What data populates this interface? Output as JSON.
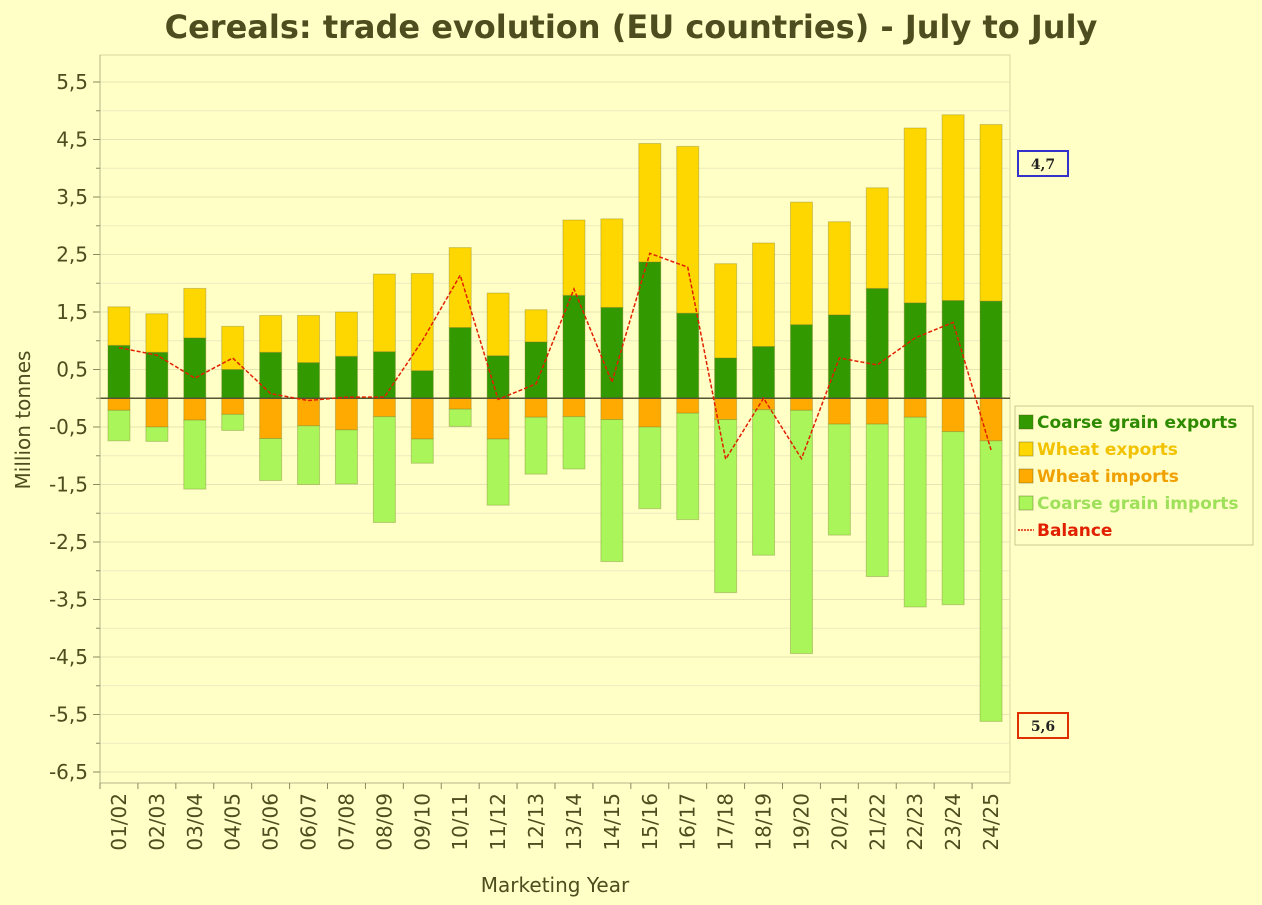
{
  "chart_data": {
    "type": "bar",
    "title": "Cereals: trade evolution (EU countries) - July to July",
    "xlabel": "Marketing Year",
    "ylabel": "Million tonnes",
    "ylim": [
      -6.5,
      5.5
    ],
    "yticks": [
      5.5,
      4.5,
      3.5,
      2.5,
      1.5,
      0.5,
      -0.5,
      -1.5,
      -2.5,
      -3.5,
      -4.5,
      -5.5,
      -6.5
    ],
    "ytick_labels": [
      "5,5",
      "4,5",
      "3,5",
      "2,5",
      "1,5",
      "0,5",
      "-0,5",
      "-1,5",
      "-2,5",
      "-3,5",
      "-4,5",
      "-5,5",
      "-6,5"
    ],
    "grid": true,
    "legend_position": "right",
    "categories": [
      "01/02",
      "02/03",
      "03/04",
      "04/05",
      "05/06",
      "06/07",
      "07/08",
      "08/09",
      "09/10",
      "10/11",
      "11/12",
      "12/13",
      "13/14",
      "14/15",
      "15/16",
      "16/17",
      "17/18",
      "18/19",
      "19/20",
      "20/21",
      "21/22",
      "22/23",
      "23/24",
      "24/25"
    ],
    "series": [
      {
        "name": "Coarse grain exports",
        "color": "#339900",
        "kind": "bar",
        "stack": "pos",
        "values": [
          0.92,
          0.8,
          1.05,
          0.5,
          0.8,
          0.62,
          0.73,
          0.81,
          0.48,
          1.23,
          0.74,
          0.98,
          1.79,
          1.58,
          2.37,
          1.48,
          0.7,
          0.9,
          1.28,
          1.45,
          1.91,
          1.66,
          1.7,
          1.69
        ]
      },
      {
        "name": "Wheat exports",
        "color": "#ffd700",
        "kind": "bar",
        "stack": "pos",
        "values": [
          0.67,
          0.67,
          0.86,
          0.75,
          0.64,
          0.82,
          0.77,
          1.35,
          1.69,
          1.39,
          1.09,
          0.56,
          1.31,
          1.54,
          2.06,
          2.9,
          1.64,
          1.8,
          2.13,
          1.62,
          1.75,
          3.04,
          3.23,
          3.07
        ]
      },
      {
        "name": "Wheat imports",
        "color": "#ffaa00",
        "kind": "bar",
        "stack": "neg",
        "values": [
          -0.21,
          -0.5,
          -0.38,
          -0.28,
          -0.7,
          -0.48,
          -0.55,
          -0.32,
          -0.71,
          -0.19,
          -0.71,
          -0.33,
          -0.32,
          -0.37,
          -0.5,
          -0.26,
          -0.37,
          -0.2,
          -0.21,
          -0.45,
          -0.45,
          -0.33,
          -0.58,
          -0.74
        ]
      },
      {
        "name": "Coarse grain imports",
        "color": "#aaf55a",
        "kind": "bar",
        "stack": "neg",
        "values": [
          -0.53,
          -0.25,
          -1.2,
          -0.28,
          -0.73,
          -1.02,
          -0.94,
          -1.84,
          -0.42,
          -0.3,
          -1.15,
          -0.99,
          -0.91,
          -2.47,
          -1.42,
          -1.85,
          -3.01,
          -2.53,
          -4.23,
          -1.93,
          -2.65,
          -3.3,
          -3.01,
          -4.88
        ]
      },
      {
        "name": "Balance",
        "color": "#e02000",
        "kind": "line",
        "values": [
          0.88,
          0.75,
          0.35,
          0.7,
          0.08,
          -0.04,
          0.02,
          0.02,
          1.0,
          2.14,
          -0.02,
          0.25,
          1.9,
          0.28,
          2.52,
          2.28,
          -1.06,
          0.0,
          -1.05,
          0.7,
          0.58,
          1.05,
          1.32,
          -0.9
        ]
      }
    ],
    "annotations": [
      {
        "text": "4,7",
        "border": "#3333cc"
      },
      {
        "text": "5,6",
        "border": "#e03000"
      }
    ]
  }
}
